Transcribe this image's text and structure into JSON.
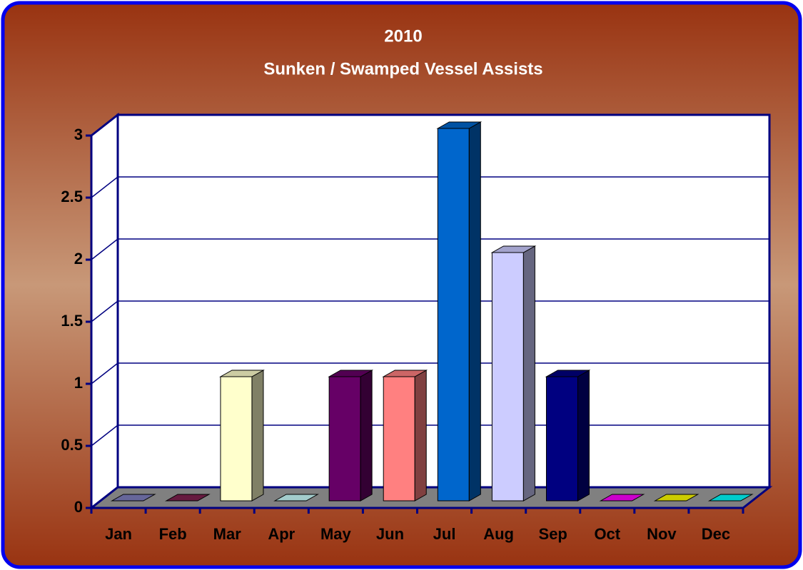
{
  "chart_data": {
    "type": "bar3d",
    "title": "2010",
    "subtitle": "Sunken / Swamped Vessel Assists",
    "categories": [
      "Jan",
      "Feb",
      "Mar",
      "Apr",
      "May",
      "Jun",
      "Jul",
      "Aug",
      "Sep",
      "Oct",
      "Nov",
      "Dec"
    ],
    "values": [
      0,
      0,
      1,
      0,
      1,
      1,
      3,
      2,
      1,
      0,
      0,
      0
    ],
    "colors": [
      "#8080c0",
      "#802050",
      "#ffffcc",
      "#ccffff",
      "#660066",
      "#ff8080",
      "#0066cc",
      "#ccccff",
      "#000080",
      "#ff00ff",
      "#ffff00",
      "#00ffff"
    ],
    "ylim": [
      0,
      3
    ],
    "yticks": [
      0,
      0.5,
      1,
      1.5,
      2,
      2.5,
      3
    ],
    "grid": true
  }
}
